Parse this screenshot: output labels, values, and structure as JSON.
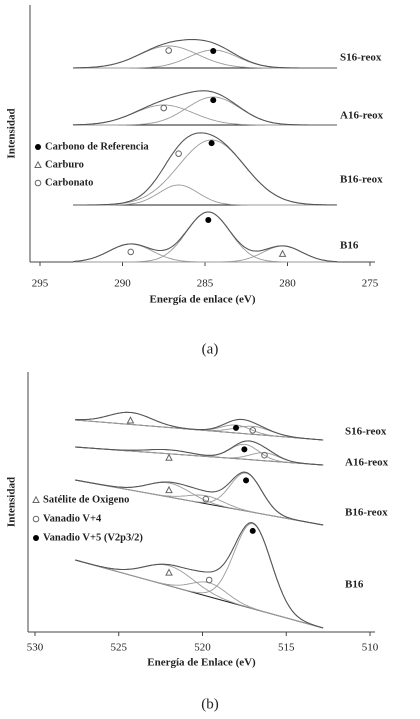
{
  "chart_data": [
    {
      "type": "line",
      "xlabel": "Energía de enlace (eV)",
      "ylabel": "Intensidad",
      "caption": "(a)",
      "xlim": [
        295,
        275
      ],
      "xticks": [
        295,
        290,
        285,
        280,
        275
      ],
      "spectra": [
        "S16-reox",
        "A16-reox",
        "B16-reox",
        "B16"
      ],
      "series": [
        {
          "name": "Carbono de Referencia",
          "marker": "dot",
          "color": "#9a9a9a",
          "center": [
            284.5,
            284.5,
            284.6,
            284.8
          ],
          "height": [
            18,
            28,
            65,
            50
          ],
          "width": [
            3.5,
            3.8,
            4.7,
            3.1
          ]
        },
        {
          "name": "Carburo",
          "marker": "triangle",
          "color": "#9a9a9a",
          "center": [
            null,
            null,
            null,
            280.3
          ],
          "height": [
            null,
            null,
            null,
            16
          ],
          "width": [
            null,
            null,
            null,
            2.8
          ]
        },
        {
          "name": "Carbonato",
          "marker": "circle",
          "color": "#9a9a9a",
          "center": [
            287.2,
            287.5,
            286.6,
            289.5
          ],
          "height": [
            22,
            20,
            20,
            18
          ],
          "width": [
            4.2,
            4.2,
            2.8,
            3.1
          ]
        }
      ]
    },
    {
      "type": "line",
      "xlabel": "Energía de Enlace (eV)",
      "ylabel": "Intensidad",
      "caption": "(b)",
      "xlim": [
        530,
        510
      ],
      "xticks": [
        530,
        525,
        520,
        515,
        510
      ],
      "spectra": [
        "S16-reox",
        "A16-reox",
        "B16-reox",
        "B16"
      ],
      "series": [
        {
          "name": "Satélite de Oxigeno",
          "marker": "triangle",
          "color": "#9a9a9a",
          "center": [
            524.3,
            522,
            522,
            522
          ],
          "height": [
            12,
            4,
            14,
            20
          ],
          "width": [
            3,
            3,
            3,
            3.5
          ]
        },
        {
          "name": "Vanadio V+4",
          "marker": "circle",
          "color": "#9a9a9a",
          "center": [
            517,
            516.3,
            519.8,
            519.6
          ],
          "height": [
            8,
            8,
            8,
            14
          ],
          "width": [
            2.5,
            2,
            2.5,
            2.5
          ]
        },
        {
          "name": "Vanadio V+5 (V2p3/2)",
          "marker": "dot",
          "color": "#9a9a9a",
          "center": [
            518,
            517.5,
            517.4,
            517
          ],
          "height": [
            8,
            15,
            38,
            85
          ],
          "width": [
            2,
            2,
            2.2,
            2.6
          ]
        }
      ]
    }
  ]
}
